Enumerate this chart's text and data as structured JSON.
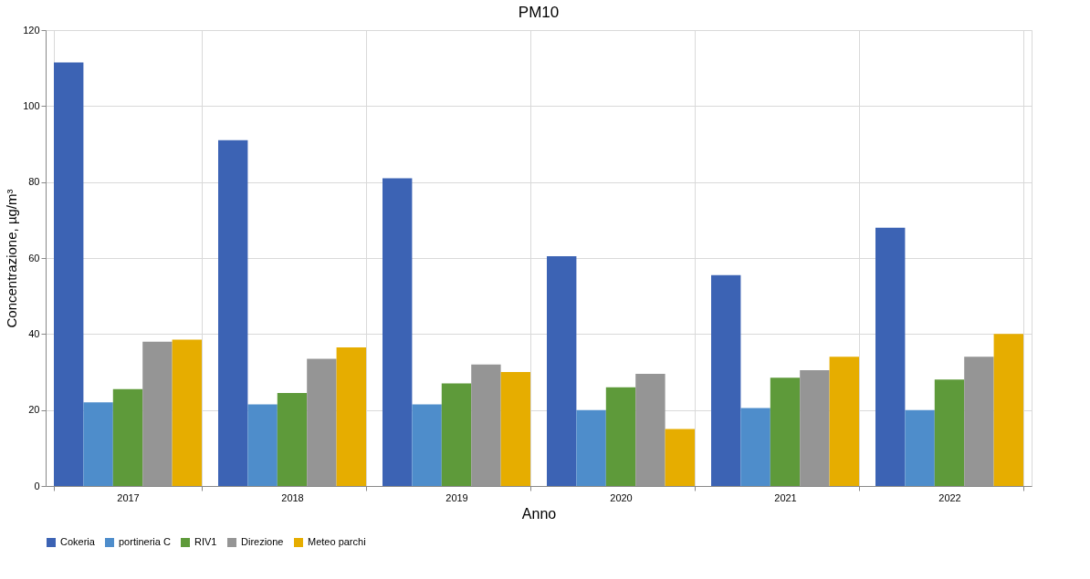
{
  "chart_data": {
    "type": "bar",
    "title": "PM10",
    "xlabel": "Anno",
    "ylabel": "Concentrazione, µg/m³",
    "categories": [
      "2017",
      "2018",
      "2019",
      "2020",
      "2021",
      "2022"
    ],
    "series": [
      {
        "name": "Cokeria",
        "color": "#3c63b4",
        "values": [
          111.5,
          91,
          81,
          60.5,
          55.5,
          68
        ]
      },
      {
        "name": "portineria C",
        "color": "#4e8dcb",
        "values": [
          22,
          21.5,
          21.5,
          20,
          20.5,
          20
        ]
      },
      {
        "name": "RIV1",
        "color": "#5e9a3a",
        "values": [
          25.5,
          24.5,
          27,
          26,
          28.5,
          28
        ]
      },
      {
        "name": "Direzione",
        "color": "#959595",
        "values": [
          38,
          33.5,
          32,
          29.5,
          30.5,
          34
        ]
      },
      {
        "name": "Meteo parchi",
        "color": "#e6ad00",
        "values": [
          38.5,
          36.5,
          30,
          15,
          34,
          40
        ]
      }
    ],
    "ylim": [
      0,
      120
    ],
    "yticks": [
      0,
      20,
      40,
      60,
      80,
      100,
      120
    ],
    "grid": true,
    "legend": "bottom"
  }
}
